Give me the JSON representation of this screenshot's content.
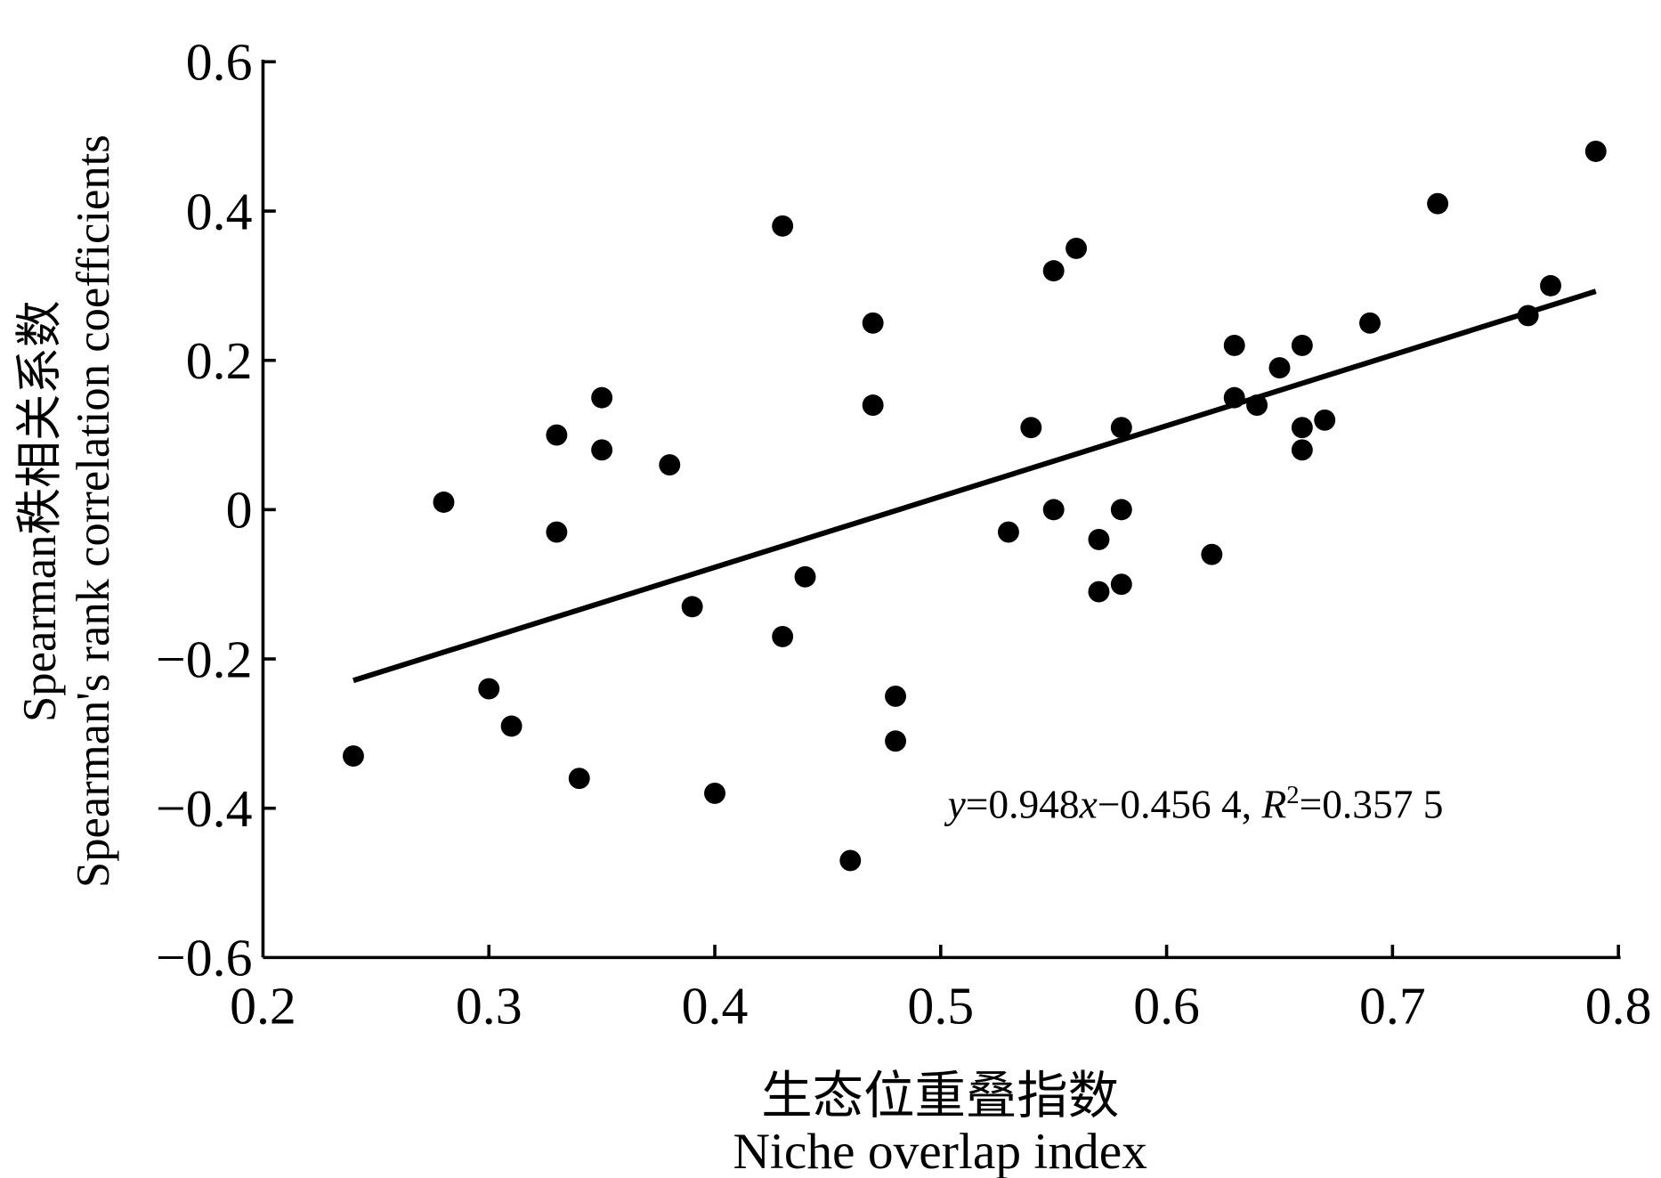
{
  "chart_data": {
    "type": "scatter",
    "title": "",
    "xlabel": "生态位重叠指数",
    "xlabel_en": "Niche overlap index",
    "ylabel": "Spearman秩相关系数",
    "ylabel_en": "Spearman's rank correlation coefficients",
    "xlim": [
      0.2,
      0.8
    ],
    "ylim": [
      -0.6,
      0.6
    ],
    "xticks": [
      "0.2",
      "0.3",
      "0.4",
      "0.5",
      "0.6",
      "0.7",
      "0.8"
    ],
    "xtick_values": [
      0.2,
      0.3,
      0.4,
      0.5,
      0.6,
      0.7,
      0.8
    ],
    "yticks": [
      "0.6",
      "0.4",
      "0.2",
      "0",
      "−0.2",
      "−0.4",
      "−0.6"
    ],
    "ytick_values": [
      0.6,
      0.4,
      0.2,
      0,
      -0.2,
      -0.4,
      -0.6
    ],
    "grid": false,
    "points": [
      [
        0.24,
        -0.33
      ],
      [
        0.28,
        0.01
      ],
      [
        0.3,
        -0.24
      ],
      [
        0.31,
        -0.29
      ],
      [
        0.33,
        0.1
      ],
      [
        0.33,
        -0.03
      ],
      [
        0.34,
        -0.36
      ],
      [
        0.35,
        0.15
      ],
      [
        0.35,
        0.08
      ],
      [
        0.38,
        0.06
      ],
      [
        0.39,
        -0.13
      ],
      [
        0.4,
        -0.38
      ],
      [
        0.43,
        0.38
      ],
      [
        0.43,
        -0.17
      ],
      [
        0.44,
        -0.09
      ],
      [
        0.46,
        -0.47
      ],
      [
        0.47,
        0.25
      ],
      [
        0.47,
        0.14
      ],
      [
        0.48,
        -0.25
      ],
      [
        0.48,
        -0.31
      ],
      [
        0.53,
        -0.03
      ],
      [
        0.54,
        0.11
      ],
      [
        0.55,
        0.32
      ],
      [
        0.55,
        0.0
      ],
      [
        0.56,
        0.35
      ],
      [
        0.57,
        -0.04
      ],
      [
        0.57,
        -0.11
      ],
      [
        0.58,
        0.11
      ],
      [
        0.58,
        0.0
      ],
      [
        0.58,
        -0.1
      ],
      [
        0.62,
        -0.06
      ],
      [
        0.63,
        0.22
      ],
      [
        0.63,
        0.15
      ],
      [
        0.64,
        0.14
      ],
      [
        0.65,
        0.19
      ],
      [
        0.66,
        0.22
      ],
      [
        0.66,
        0.11
      ],
      [
        0.66,
        0.08
      ],
      [
        0.67,
        0.12
      ],
      [
        0.69,
        0.25
      ],
      [
        0.72,
        0.41
      ],
      [
        0.76,
        0.26
      ],
      [
        0.77,
        0.3
      ],
      [
        0.79,
        0.48
      ]
    ],
    "trendline": {
      "slope": 0.948,
      "intercept": -0.4564,
      "x_range": [
        0.24,
        0.79
      ]
    },
    "annotation": {
      "y": "y",
      "eq1": "=0.948",
      "x": "x",
      "eq2": "−0.456 4, ",
      "R": "R",
      "sup": "2",
      "eq3": "=0.357 5"
    }
  }
}
